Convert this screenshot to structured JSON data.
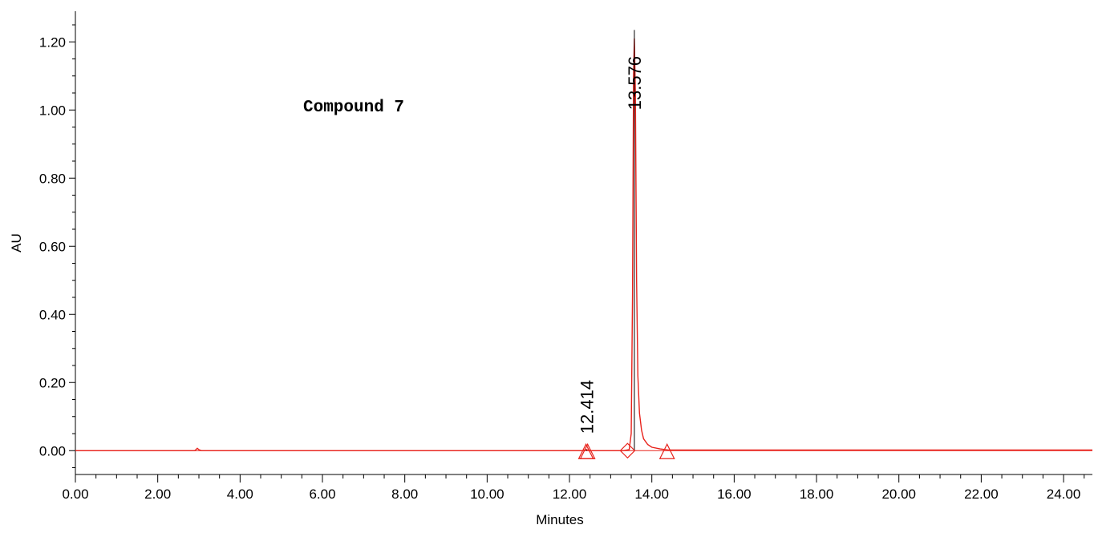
{
  "chart_data": {
    "type": "line",
    "title": "",
    "annotation": "Compound 7",
    "xlabel": "Minutes",
    "ylabel": "AU",
    "xlim": [
      0,
      24.7
    ],
    "ylim": [
      -0.07,
      1.29
    ],
    "x_ticks": [
      "0.00",
      "2.00",
      "4.00",
      "6.00",
      "8.00",
      "10.00",
      "12.00",
      "14.00",
      "16.00",
      "18.00",
      "20.00",
      "22.00",
      "24.00"
    ],
    "y_ticks": [
      "0.00",
      "0.20",
      "0.40",
      "0.60",
      "0.80",
      "1.00",
      "1.20"
    ],
    "grid": false,
    "series": [
      {
        "color": "#e8221b",
        "x": [
          0.0,
          2.9,
          2.96,
          3.0,
          3.06,
          12.0,
          12.3,
          12.414,
          12.5,
          13.3,
          13.45,
          13.5,
          13.53,
          13.555,
          13.576,
          13.6,
          13.63,
          13.66,
          13.7,
          13.75,
          13.8,
          13.9,
          14.0,
          14.2,
          14.4,
          24.7
        ],
        "y": [
          0.0,
          0.0,
          0.007,
          0.003,
          0.0,
          0.0,
          0.0,
          0.003,
          0.0,
          0.0,
          0.003,
          0.05,
          0.45,
          1.1,
          1.21,
          1.05,
          0.5,
          0.22,
          0.11,
          0.06,
          0.035,
          0.018,
          0.01,
          0.005,
          0.002,
          0.002
        ]
      }
    ],
    "peaks": [
      {
        "time": 12.414,
        "label": "12.414",
        "height": 0.003
      },
      {
        "time": 13.576,
        "label": "13.576",
        "height": 1.235
      }
    ],
    "markers": [
      {
        "shape": "triangle",
        "time": 12.4
      },
      {
        "shape": "triangle",
        "time": 12.44
      },
      {
        "shape": "diamond",
        "time": 13.41
      },
      {
        "shape": "triangle",
        "time": 14.37
      }
    ],
    "baseline_color": "#e8221b",
    "axis_color": "#000000"
  }
}
